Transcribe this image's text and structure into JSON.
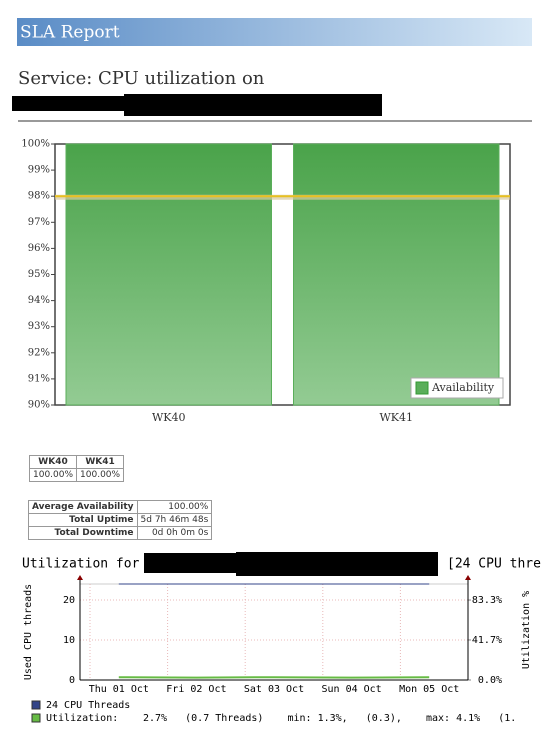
{
  "header": {
    "title": "SLA Report"
  },
  "service": {
    "heading": "Service: CPU utilization on"
  },
  "chart_data": [
    {
      "type": "bar",
      "categories": [
        "WK40",
        "WK41"
      ],
      "values": [
        100,
        100
      ],
      "color": "#5aae5a",
      "ylim": [
        90,
        100
      ],
      "yticks": [
        {
          "value": 90,
          "label": "90%"
        },
        {
          "value": 91,
          "label": "91%"
        },
        {
          "value": 92,
          "label": "92%"
        },
        {
          "value": 93,
          "label": "93%"
        },
        {
          "value": 94,
          "label": "94%"
        },
        {
          "value": 95,
          "label": "95%"
        },
        {
          "value": 96,
          "label": "96%"
        },
        {
          "value": 97,
          "label": "97%"
        },
        {
          "value": 98,
          "label": "98%"
        },
        {
          "value": 99,
          "label": "99%"
        },
        {
          "value": 100,
          "label": "100%"
        }
      ],
      "threshold": 98,
      "threshold_color": "#e8c020",
      "legend": "Availability",
      "legend_position": "lower right"
    },
    {
      "type": "line",
      "title": "Utilization for",
      "title_suffix": "[24 CPU thre",
      "ylabel": "Used CPU threads",
      "y2label": "Utilization %",
      "categories": [
        "Thu 01 Oct",
        "Fri 02 Oct",
        "Sat 03 Oct",
        "Sun 04 Oct",
        "Mon 05 Oct"
      ],
      "series": [
        {
          "name": "24 CPU Threads",
          "color": "#334488",
          "values": [
            24,
            24,
            24,
            24,
            24
          ]
        },
        {
          "name": "Utilization:",
          "color": "#66bb44",
          "values": [
            0.7,
            0.6,
            0.7,
            0.6,
            0.7
          ]
        }
      ],
      "legend_stats": "2.7%   (0.7 Threads)    min: 1.3%,   (0.3),    max: 4.1%   (1.",
      "ylim": [
        0,
        24
      ],
      "yticks": [
        0,
        10,
        20
      ],
      "y2lim": [
        0,
        100
      ],
      "y2ticks": [
        {
          "value": 0,
          "label": "0.0%"
        },
        {
          "value": 41.7,
          "label": "41.7%"
        },
        {
          "value": 83.3,
          "label": "83.3%"
        }
      ],
      "grid": true
    }
  ],
  "availability_table": {
    "headers": [
      "WK40",
      "WK41"
    ],
    "row": [
      "100.00%",
      "100.00%"
    ]
  },
  "summary_table": {
    "rows": [
      [
        "Average Availability",
        "100.00%"
      ],
      [
        "Total Uptime",
        "5d 7h 46m 48s"
      ],
      [
        "Total Downtime",
        "0d 0h 0m 0s"
      ]
    ]
  }
}
